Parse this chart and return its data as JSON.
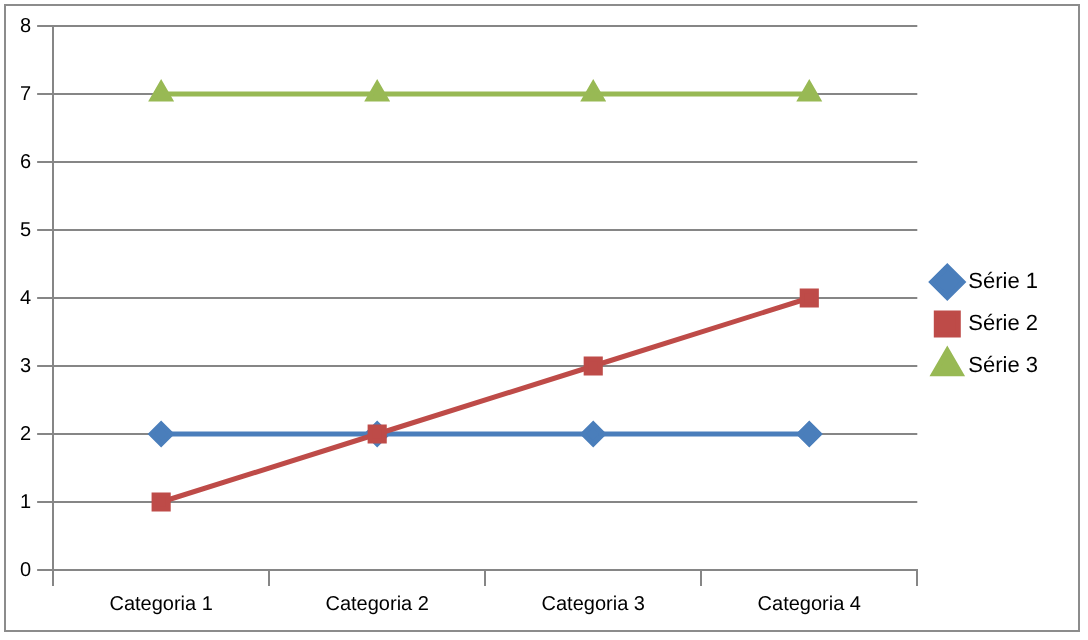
{
  "chart_data": {
    "type": "line",
    "categories": [
      "Categoria 1",
      "Categoria 2",
      "Categoria 3",
      "Categoria 4"
    ],
    "series": [
      {
        "name": "Série 1",
        "color": "#4a7ebb",
        "marker": "diamond",
        "values": [
          2,
          2,
          2,
          2
        ]
      },
      {
        "name": "Série 2",
        "color": "#be4b48",
        "marker": "square",
        "values": [
          1,
          2,
          3,
          4
        ]
      },
      {
        "name": "Série 3",
        "color": "#98b954",
        "marker": "triangle",
        "values": [
          7,
          7,
          7,
          7
        ]
      }
    ],
    "ylim": [
      0,
      8
    ],
    "yticks": [
      0,
      1,
      2,
      3,
      4,
      5,
      6,
      7,
      8
    ],
    "grid": "y",
    "legend": "right",
    "line_style": "solid"
  }
}
